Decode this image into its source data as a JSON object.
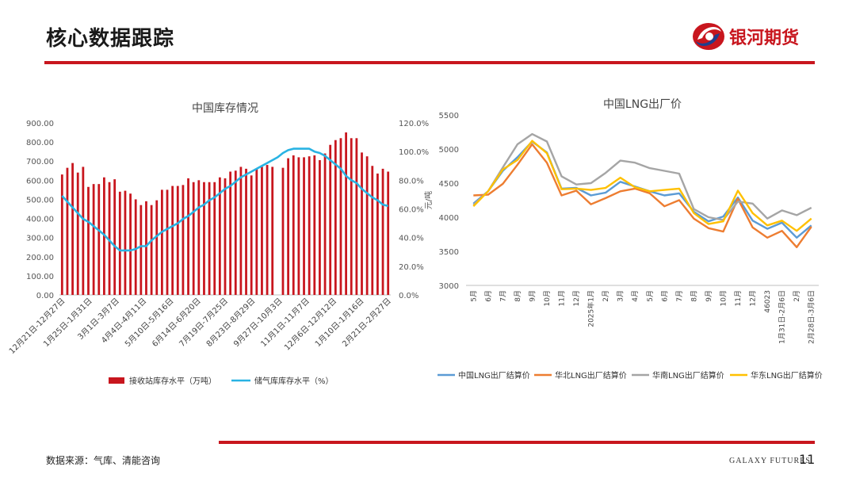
{
  "header": {
    "title": "核心数据跟踪"
  },
  "logo": {
    "text": "银河期货"
  },
  "footer": {
    "source": "数据来源：气库、清能咨询",
    "brand": "GALAXY FUTURES",
    "page_number": "11"
  },
  "colors": {
    "accent": "#c8161e",
    "bar": "#c8161e",
    "line_blue": "#29b3e3",
    "cn": "#5b9bd5",
    "nc": "#ed7d31",
    "sc": "#a5a5a5",
    "ec": "#ffc000"
  },
  "chart_data": [
    {
      "type": "bar+line",
      "title": "中国库存情况",
      "left_axis": {
        "min": 0,
        "max": 900,
        "ticks": [
          "0.00",
          "100.00",
          "200.00",
          "300.00",
          "400.00",
          "500.00",
          "600.00",
          "700.00",
          "800.00",
          "900.00"
        ]
      },
      "right_axis": {
        "min": 0,
        "max": 120,
        "ticks": [
          "0.0%",
          "20.0%",
          "40.0%",
          "60.0%",
          "80.0%",
          "100.0%",
          "120.0%"
        ]
      },
      "x_tick_labels": [
        "12月21日-12月27日",
        "1月25日-1月31日",
        "3月1日-3月7日",
        "4月4日-4月11日",
        "5月10日-5月16日",
        "6月14日-6月20日",
        "7月19日-7月25日",
        "8月23日-8月29日",
        "9月27日-10月3日",
        "11月1日-11月7日",
        "12月6日-12月12日",
        "1月10日-1月16日",
        "2月21日-2月27日"
      ],
      "bar_values": [
        630,
        665,
        690,
        640,
        670,
        565,
        580,
        580,
        615,
        590,
        605,
        540,
        545,
        530,
        500,
        470,
        490,
        470,
        495,
        550,
        550,
        570,
        570,
        575,
        610,
        590,
        600,
        590,
        590,
        590,
        615,
        610,
        645,
        650,
        670,
        660,
        625,
        660,
        670,
        680,
        670,
        null,
        665,
        715,
        730,
        720,
        720,
        725,
        730,
        705,
        740,
        785,
        810,
        820,
        850,
        820,
        820,
        745,
        725,
        675,
        635,
        660,
        645
      ],
      "line_values": [
        69.1,
        65,
        61,
        57,
        53,
        51,
        48,
        45,
        42,
        38,
        34,
        31,
        31,
        31,
        32,
        34,
        34,
        38,
        41,
        44,
        46,
        48,
        50,
        53,
        55,
        58,
        61,
        63,
        66,
        68,
        71,
        74,
        76,
        79,
        82,
        84,
        86,
        88,
        90,
        92,
        94,
        96,
        99,
        101,
        102,
        102,
        102,
        102,
        100,
        99,
        97,
        94,
        91,
        88,
        83,
        80,
        78,
        74,
        71,
        68,
        66,
        63,
        62
      ],
      "legend": [
        {
          "key": "bar",
          "label": "接收站库存水平（万吨）"
        },
        {
          "key": "line",
          "label": "储气库库存水平（%）"
        }
      ]
    },
    {
      "type": "line",
      "title": "中国LNG出厂价",
      "ylabel": "元/吨",
      "y_axis": {
        "min": 3000,
        "max": 5500,
        "ticks": [
          "3000",
          "3500",
          "4000",
          "4500",
          "5000",
          "5500"
        ]
      },
      "categories": [
        "5月",
        "6月",
        "7月",
        "8月",
        "9月",
        "10月",
        "11月",
        "12月",
        "2025年1月",
        "2月",
        "3月",
        "4月",
        "5月",
        "6月",
        "7月",
        "8月",
        "9月",
        "10月",
        "11月",
        "12月",
        "46023",
        "1月31日-2月6日",
        "2月",
        "2月28日-3月6日"
      ],
      "series": [
        {
          "key": "cn",
          "name": "中国LNG出厂结算价",
          "values": [
            4200,
            4380,
            4680,
            4880,
            5110,
            4950,
            4420,
            4430,
            4320,
            4360,
            4520,
            4450,
            4380,
            4320,
            4350,
            4080,
            3940,
            4010,
            4290,
            3950,
            3830,
            3920,
            3700,
            3880
          ]
        },
        {
          "key": "nc",
          "name": "华北LNG出厂结算价",
          "values": [
            4320,
            4330,
            4490,
            4770,
            5070,
            4800,
            4320,
            4390,
            4190,
            4280,
            4380,
            4420,
            4350,
            4160,
            4250,
            3980,
            3840,
            3790,
            4270,
            3850,
            3700,
            3800,
            3560,
            3860
          ]
        },
        {
          "key": "sc",
          "name": "华南LNG出厂结算价",
          "values": [
            4180,
            4380,
            4730,
            5070,
            5220,
            5110,
            4600,
            4480,
            4500,
            4650,
            4830,
            4800,
            4720,
            4680,
            4640,
            4120,
            4000,
            3960,
            4230,
            4200,
            3980,
            4100,
            4030,
            4140
          ]
        },
        {
          "key": "ec",
          "name": "华东LNG出厂结算价",
          "values": [
            4160,
            4380,
            4700,
            4840,
            5120,
            4940,
            4410,
            4420,
            4400,
            4430,
            4580,
            4440,
            4380,
            4400,
            4420,
            4060,
            3900,
            3940,
            4390,
            4060,
            3880,
            3950,
            3800,
            3980
          ]
        }
      ]
    }
  ]
}
